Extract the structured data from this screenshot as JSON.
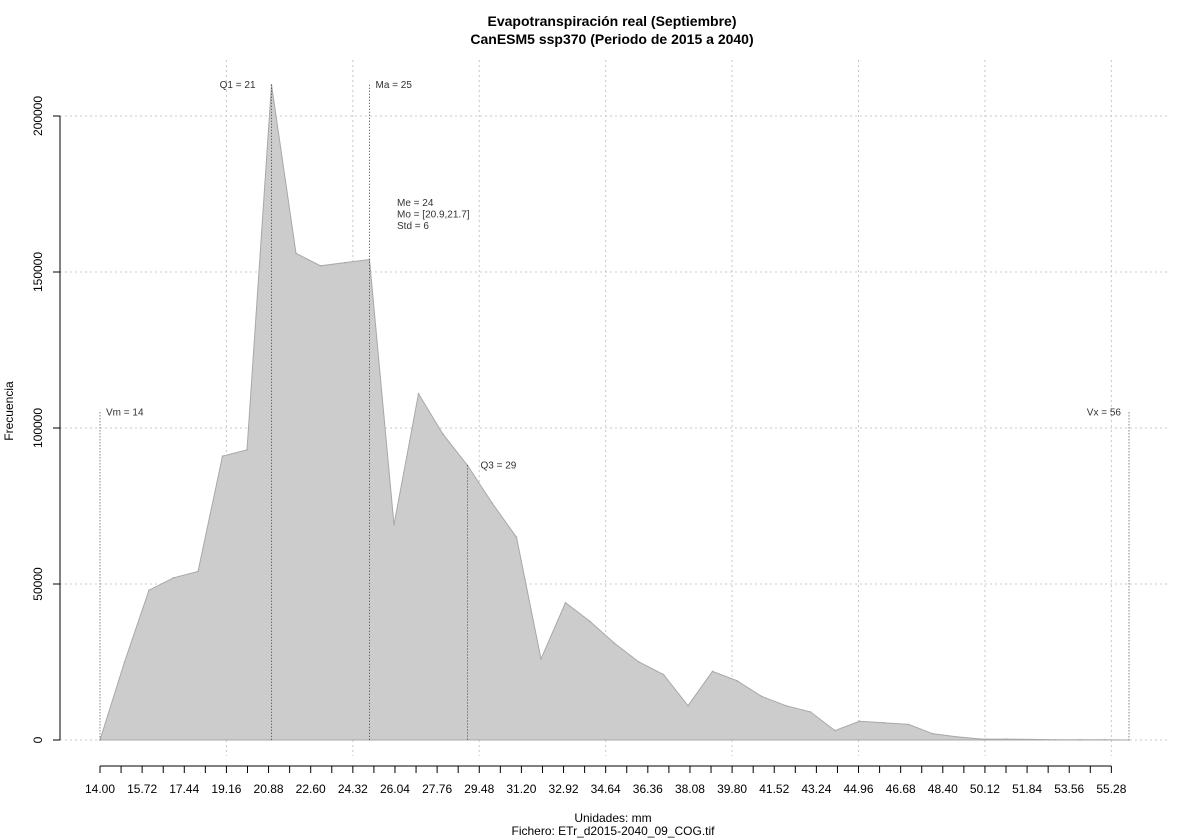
{
  "chart_data": {
    "type": "area",
    "title": "Evapotranspiración real (Septiembre)",
    "subtitle": "CanESM5 ssp370 (Periodo de 2015 a 2040)",
    "xlabel": "Unidades: mm",
    "footer": "Fichero: ETr_d2015-2040_09_COG.tif",
    "ylabel": "Frecuencia",
    "xlim": [
      14.0,
      56.0
    ],
    "ylim": [
      0,
      210000
    ],
    "grid": true,
    "fill_color": "#cccccc",
    "x_ticks": [
      14.0,
      14.86,
      15.72,
      16.58,
      17.44,
      18.3,
      19.16,
      20.02,
      20.88,
      21.74,
      22.6,
      23.46,
      24.32,
      25.18,
      26.04,
      26.9,
      27.76,
      28.62,
      29.48,
      30.34,
      31.2,
      32.06,
      32.92,
      33.78,
      34.64,
      35.5,
      36.36,
      37.22,
      38.08,
      38.94,
      39.8,
      40.66,
      41.52,
      42.38,
      43.24,
      44.1,
      44.96,
      45.82,
      46.68,
      47.54,
      48.4,
      49.26,
      50.12,
      50.98,
      51.84,
      52.7,
      53.56,
      54.42,
      55.28
    ],
    "x_tick_labels": [
      "14.00",
      "15.72",
      "17.44",
      "19.16",
      "20.88",
      "22.60",
      "24.32",
      "26.04",
      "27.76",
      "29.48",
      "31.20",
      "32.92",
      "34.64",
      "36.36",
      "38.08",
      "39.80",
      "41.52",
      "43.24",
      "44.96",
      "46.68",
      "48.40",
      "50.12",
      "51.84",
      "53.56",
      "55.28"
    ],
    "x_tick_label_values": [
      14.0,
      15.72,
      17.44,
      19.16,
      20.88,
      22.6,
      24.32,
      26.04,
      27.76,
      29.48,
      31.2,
      32.92,
      34.64,
      36.36,
      38.08,
      39.8,
      41.52,
      43.24,
      44.96,
      46.68,
      48.4,
      50.12,
      51.84,
      53.56,
      55.28
    ],
    "y_ticks": [
      0,
      50000,
      100000,
      150000,
      200000
    ],
    "y_tick_labels": [
      "0",
      "50000",
      "100000",
      "150000",
      "200000"
    ],
    "x_gridlines": [
      19.16,
      24.32,
      29.48,
      34.64,
      39.8,
      44.96,
      50.12,
      55.28
    ],
    "x": [
      14.0,
      15.0,
      16.0,
      17.0,
      18.0,
      19.0,
      20.0,
      21.0,
      22.0,
      23.0,
      24.0,
      25.0,
      26.0,
      27.0,
      28.0,
      29.0,
      30.0,
      31.0,
      32.0,
      33.0,
      34.0,
      35.0,
      36.0,
      37.0,
      38.0,
      39.0,
      40.0,
      41.0,
      42.0,
      43.0,
      44.0,
      45.0,
      46.0,
      47.0,
      48.0,
      49.0,
      50.0,
      51.0,
      52.0,
      53.0,
      54.0,
      55.0,
      56.0
    ],
    "y": [
      0,
      25000,
      48000,
      52000,
      54000,
      91000,
      93000,
      210000,
      156000,
      152000,
      153000,
      154000,
      69000,
      111000,
      98000,
      88000,
      76000,
      65000,
      26000,
      44000,
      38000,
      31000,
      25000,
      21000,
      11000,
      22000,
      19000,
      14000,
      11000,
      9000,
      3000,
      6000,
      5500,
      5000,
      2000,
      1000,
      300,
      300,
      200,
      100,
      100,
      100,
      0
    ],
    "annotations": {
      "vm": "Vm = 14",
      "q1": "Q1 = 21",
      "ma": "Ma = 25",
      "q3": "Q3 = 29",
      "vx": "Vx = 56",
      "me": "Me = 24",
      "mo": "Mo = [20.9,21.7]",
      "std": "Std = 6"
    },
    "vlines": [
      {
        "key": "vm",
        "x": 14.0,
        "top": 105000
      },
      {
        "key": "q1",
        "x": 21.0,
        "top": 210000
      },
      {
        "key": "ma",
        "x": 25.0,
        "top": 210000
      },
      {
        "key": "q3",
        "x": 29.0,
        "top": 88000
      },
      {
        "key": "vx",
        "x": 56.0,
        "top": 105000
      }
    ]
  }
}
